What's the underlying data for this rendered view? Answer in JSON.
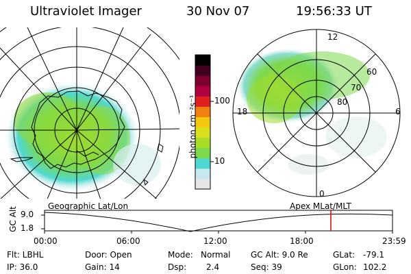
{
  "header": {
    "title": "Ultraviolet Imager",
    "date": "30 Nov 07",
    "time": "19:56:33 UT"
  },
  "colorbar": {
    "label": "photon cm⁻²s⁻¹",
    "ticks": [
      "100",
      "10"
    ],
    "colors": [
      "#e6e6e6",
      "#c8e8f0",
      "#50d8d0",
      "#7cd84c",
      "#a8dc28",
      "#d8e01c",
      "#f4c810",
      "#f08010",
      "#e02020",
      "#b00040",
      "#800030",
      "#400020",
      "#000000"
    ]
  },
  "left_panel": {
    "label": "Geographic Lat/Lon"
  },
  "right_panel": {
    "label": "Apex MLat/MLT",
    "lat_labels": [
      "60",
      "70",
      "80"
    ],
    "mlt_labels": [
      "12",
      "18",
      "6",
      "0"
    ]
  },
  "timeline": {
    "axis_label": "GC Alt",
    "y_ticks": [
      "9.0",
      "1.8"
    ],
    "x_ticks": [
      "00:00",
      "06:00",
      "12:00",
      "18:00",
      "23:59"
    ]
  },
  "status": {
    "row1": {
      "flt": "Flt: LBHL",
      "door": "Door: Open",
      "mode_label": "Mode:",
      "mode_value": "Normal",
      "gcalt": "GC Alt: 9.0 Re",
      "glat_label": "GLat:",
      "glat_value": "-79.1"
    },
    "row2": {
      "ip": "IP: 36.0",
      "gain": "Gain: 14",
      "dsp_label": "Dsp:",
      "dsp_value": "2.4",
      "seq": "Seq: 39",
      "glon_label": "GLon:",
      "glon_value": "102.2"
    }
  }
}
